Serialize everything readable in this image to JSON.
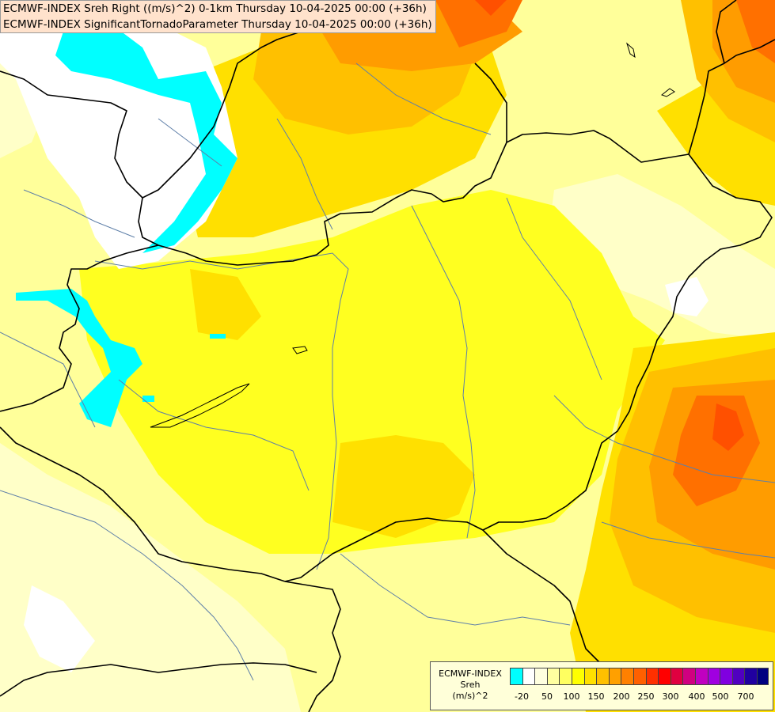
{
  "title_lines": [
    "ECMWF-INDEX Sreh Right ((m/s)^2) 0-1km Thursday 10-04-2025 00:00 (+36h)",
    "ECMWF-INDEX SignificantTornadoParameter Thursday 10-04-2025 00:00 (+36h)"
  ],
  "legend": {
    "title_lines": [
      "ECMWF-INDEX",
      "Sreh",
      "(m/s)^2"
    ],
    "colors": [
      "#00ffff",
      "#ffffff",
      "#ffffe0",
      "#ffffa0",
      "#ffff60",
      "#ffff00",
      "#ffe000",
      "#ffc000",
      "#ffa000",
      "#ff8000",
      "#ff6000",
      "#ff3000",
      "#ff0000",
      "#e00040",
      "#d00080",
      "#c000c0",
      "#a000e0",
      "#8000e0",
      "#5000c0",
      "#2000a0",
      "#000080"
    ],
    "tick_labels": [
      "-20",
      "50",
      "100",
      "150",
      "200",
      "250",
      "300",
      "400",
      "500",
      "700"
    ]
  },
  "colors": {
    "base": "#ffff9a",
    "light_yellow": "#ffffc0",
    "yellow": "#ffff20",
    "gold": "#ffe000",
    "amber": "#ffc000",
    "orange": "#ff9c00",
    "deep_orange": "#ff7000",
    "red_orange": "#ff5000",
    "cyan": "#00ffff",
    "white": "#ffffff",
    "border": "#000000",
    "river": "#5e7fa8"
  }
}
